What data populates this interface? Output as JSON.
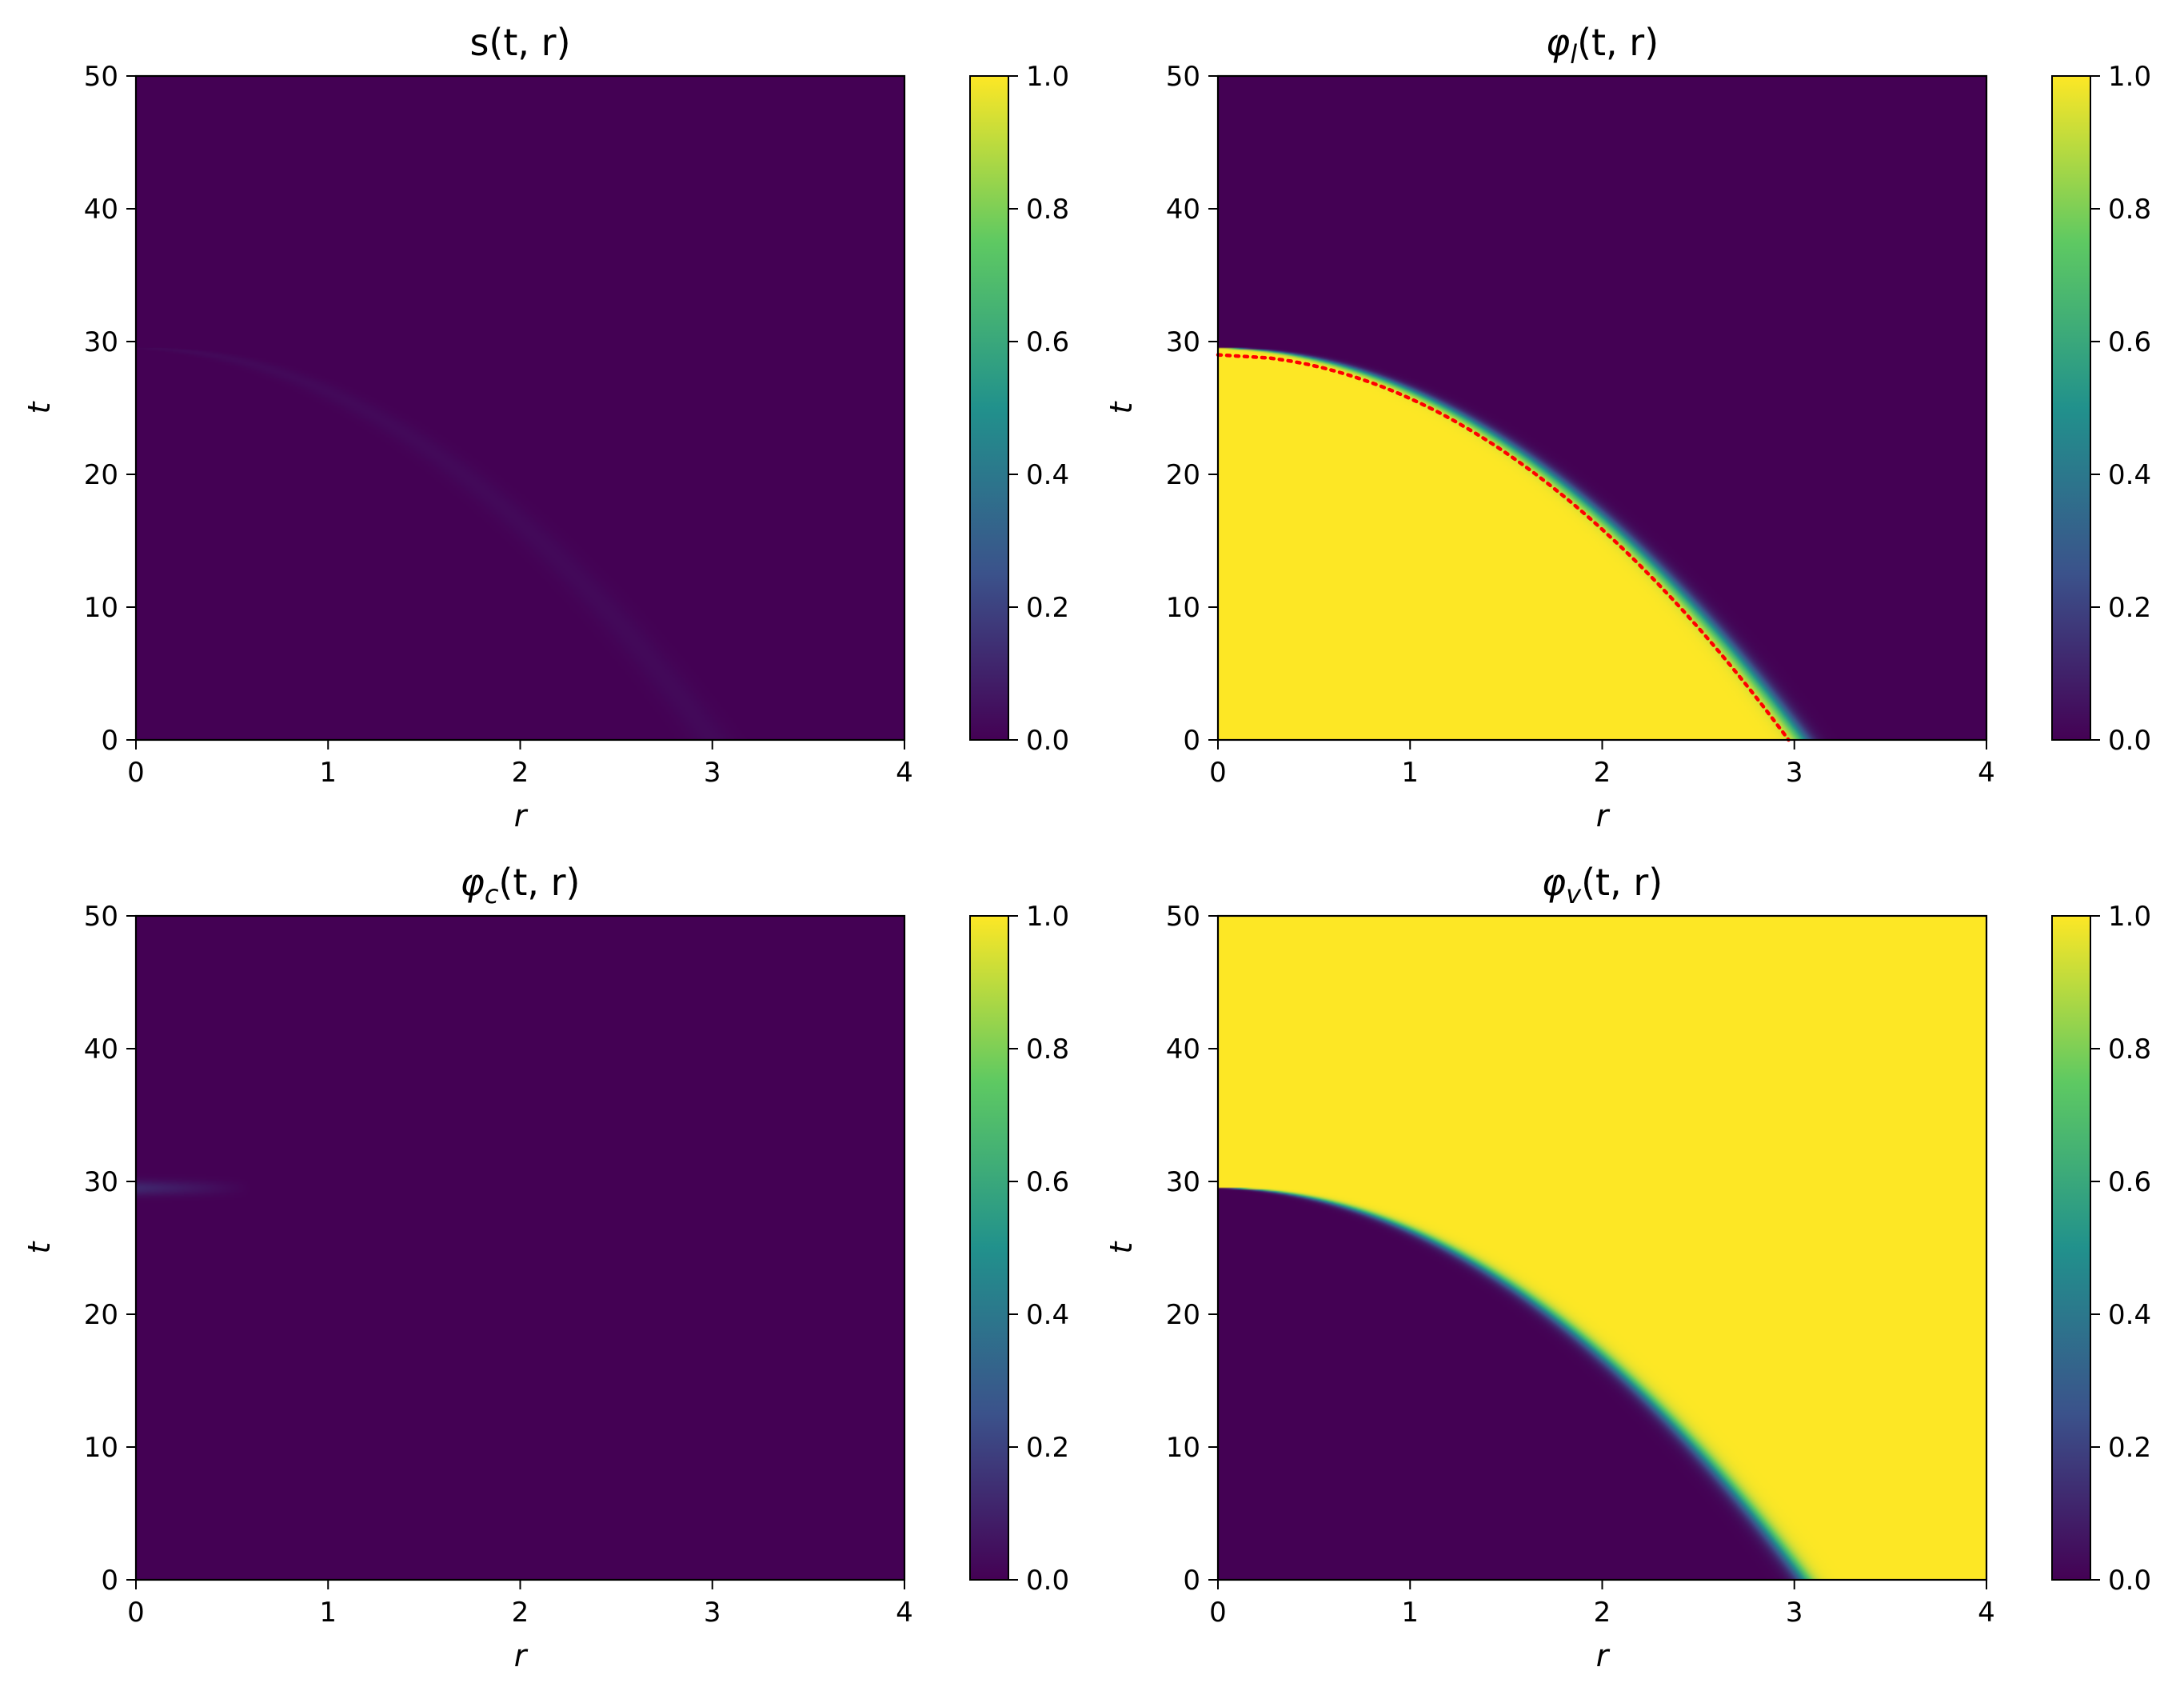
{
  "figure": {
    "background": "#ffffff"
  },
  "colormap": {
    "name": "viridis",
    "stops": [
      "#440154",
      "#3b528b",
      "#21918c",
      "#5ec962",
      "#fde725"
    ]
  },
  "chart_data": [
    {
      "type": "heatmap",
      "title": "s(t, r)",
      "xlabel": "r",
      "ylabel": "t",
      "xlim": [
        0,
        4
      ],
      "ylim": [
        0,
        50
      ],
      "xticks": [
        "0",
        "1",
        "2",
        "3",
        "4"
      ],
      "yticks": [
        "0",
        "10",
        "20",
        "30",
        "40",
        "50"
      ],
      "colorbar": {
        "range": [
          0.0,
          1.0
        ],
        "ticks": [
          "0.0",
          "0.2",
          "0.4",
          "0.6",
          "0.8",
          "1.0"
        ]
      },
      "field": {
        "front_t0": 29.5,
        "front_r0": 3.0,
        "front_width_r": 0.04,
        "inside": 0.0,
        "outside": 0.0,
        "front_peak": 0.025
      }
    },
    {
      "type": "heatmap",
      "title": "φl(t, r)",
      "xlabel": "r",
      "ylabel": "t",
      "xlim": [
        0,
        4
      ],
      "ylim": [
        0,
        50
      ],
      "xticks": [
        "0",
        "1",
        "2",
        "3",
        "4"
      ],
      "yticks": [
        "0",
        "10",
        "20",
        "30",
        "40",
        "50"
      ],
      "colorbar": {
        "range": [
          0.0,
          1.0
        ],
        "ticks": [
          "0.0",
          "0.2",
          "0.4",
          "0.6",
          "0.8",
          "1.0"
        ]
      },
      "field": {
        "front_t0": 29.5,
        "front_r0": 3.05,
        "front_width_r": 0.03,
        "inside": 1.0,
        "outside": 0.0,
        "front_peak": 0.0
      },
      "overlay": {
        "style": "dotted",
        "color": "#ff0000",
        "t0": 29.0,
        "r0": 2.97
      }
    },
    {
      "type": "heatmap",
      "title": "φc(t, r)",
      "xlabel": "r",
      "ylabel": "t",
      "xlim": [
        0,
        4
      ],
      "ylim": [
        0,
        50
      ],
      "xticks": [
        "0",
        "1",
        "2",
        "3",
        "4"
      ],
      "yticks": [
        "0",
        "10",
        "20",
        "30",
        "40",
        "50"
      ],
      "colorbar": {
        "range": [
          0.0,
          1.0
        ],
        "ticks": [
          "0.0",
          "0.2",
          "0.4",
          "0.6",
          "0.8",
          "1.0"
        ]
      },
      "field": {
        "front_t0": 29.5,
        "front_r0": 3.0,
        "front_width_r": 0.03,
        "inside": 0.0,
        "outside": 0.0,
        "front_peak": 0.0
      },
      "streak": {
        "t": 29.5,
        "r_end": 0.6,
        "peak": 0.12
      }
    },
    {
      "type": "heatmap",
      "title": "φv(t, r)",
      "xlabel": "r",
      "ylabel": "t",
      "xlim": [
        0,
        4
      ],
      "ylim": [
        0,
        50
      ],
      "xticks": [
        "0",
        "1",
        "2",
        "3",
        "4"
      ],
      "yticks": [
        "0",
        "10",
        "20",
        "30",
        "40",
        "50"
      ],
      "colorbar": {
        "range": [
          0.0,
          1.0
        ],
        "ticks": [
          "0.0",
          "0.2",
          "0.4",
          "0.6",
          "0.8",
          "1.0"
        ]
      },
      "field": {
        "front_t0": 29.5,
        "front_r0": 3.05,
        "front_width_r": 0.03,
        "inside": 0.0,
        "outside": 1.0,
        "front_peak": 0.0
      }
    }
  ]
}
